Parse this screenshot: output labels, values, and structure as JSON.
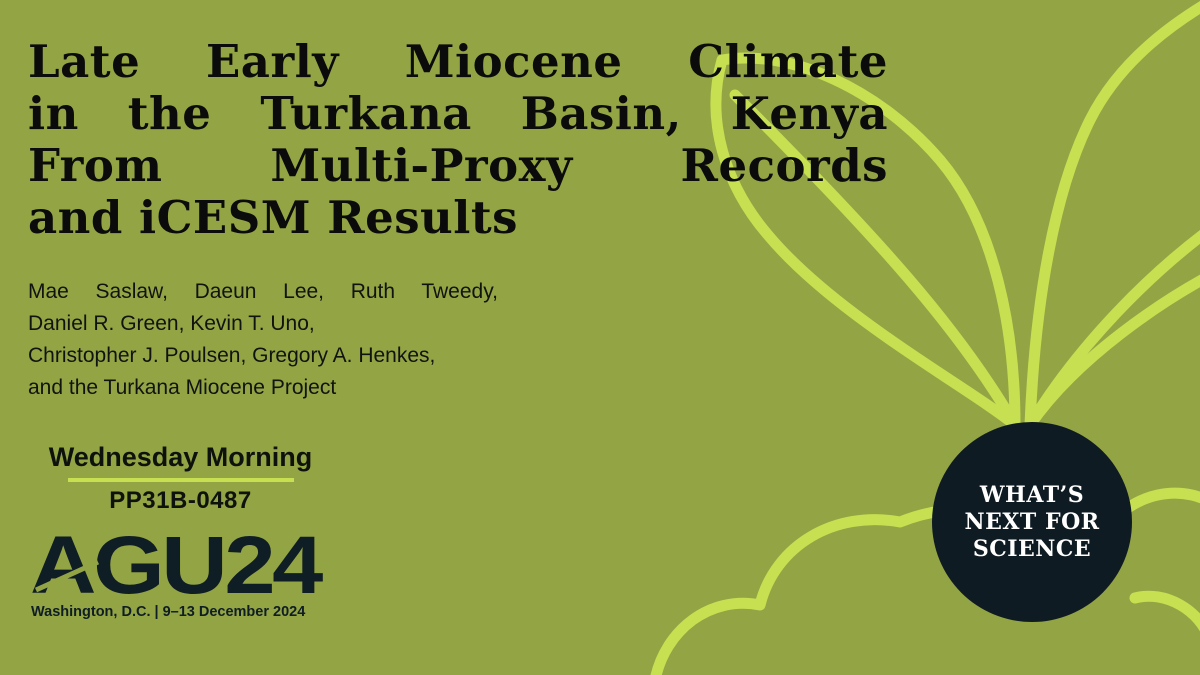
{
  "title_lines": [
    "Late Early Miocene Climate",
    "in the Turkana Basin, Kenya",
    "From Multi-Proxy Records",
    "and iCESM Results"
  ],
  "author_lines": [
    "Mae Saslaw, Daeun Lee, Ruth Tweedy,",
    "Daniel R. Green, Kevin T. Uno,",
    "Christopher J. Poulsen, Gregory A. Henkes,",
    "and the Turkana Miocene Project"
  ],
  "session": {
    "day": "Wednesday Morning",
    "code": "PP31B-0487"
  },
  "conference": {
    "logo_text": "AGU24",
    "caption": "Washington, D.C. | 9–13 December 2024"
  },
  "badge_lines": [
    "WHAT’S",
    "NEXT FOR",
    "SCIENCE"
  ],
  "colors": {
    "background": "#93a444",
    "accent_lime": "#c6e052",
    "badge_fill": "#0f1b22",
    "logo_navy": "#0f1d24"
  },
  "decor_icon": "plant-sprout-outline"
}
